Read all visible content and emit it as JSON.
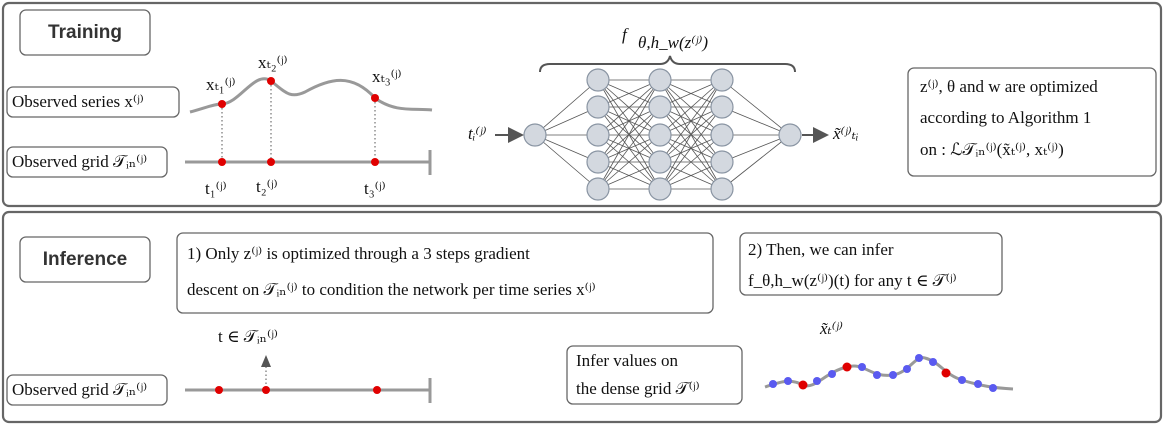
{
  "training": {
    "label": "Training",
    "series_label": "Observed series x⁽ʲ⁾",
    "grid_label": "Observed grid 𝒯ᵢₙ⁽ʲ⁾",
    "point_labels": [
      "xₜ₁⁽ʲ⁾",
      "xₜ₂⁽ʲ⁾",
      "xₜ₃⁽ʲ⁾"
    ],
    "time_labels": [
      "t₁⁽ʲ⁾",
      "t₂⁽ʲ⁾",
      "t₃⁽ʲ⁾"
    ],
    "network_symbol": "f",
    "network_subscript": "θ,h_w(z⁽ʲ⁾)",
    "input_label": "tᵢ⁽ʲ⁾",
    "output_label": "x̃⁽ʲ⁾ₜᵢ",
    "note": [
      "z⁽ʲ⁾, θ and w are optimized",
      "according to Algorithm 1",
      "on : ℒ𝒯ᵢₙ⁽ʲ⁾(x̃ₜ⁽ʲ⁾, xₜ⁽ʲ⁾)"
    ]
  },
  "inference": {
    "label": "Inference",
    "step1": [
      "1) Only z⁽ʲ⁾ is optimized through a 3 steps gradient",
      "descent  on 𝒯ᵢₙ⁽ʲ⁾ to condition the network per time series x⁽ʲ⁾"
    ],
    "step2": [
      "2) Then, we can infer",
      "f_θ,h_w(z⁽ʲ⁾)(t) for any t ∈ 𝒯⁽ʲ⁾"
    ],
    "query_label": "t ∈ 𝒯ᵢₙ⁽ʲ⁾",
    "grid_label": "Observed grid 𝒯ᵢₙ⁽ʲ⁾",
    "dense_note": [
      "Infer values on",
      "the dense grid 𝒯⁽ʲ⁾"
    ],
    "output_label": "x̃ₜ⁽ʲ⁾"
  }
}
